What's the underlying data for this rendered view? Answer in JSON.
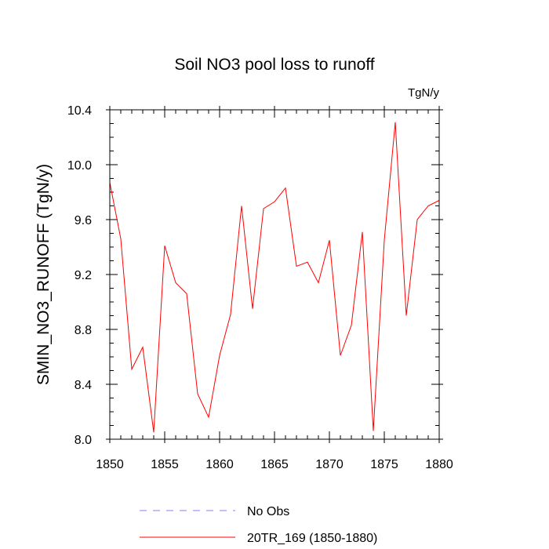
{
  "chart_data": {
    "type": "line",
    "title": "Soil NO3 pool loss to runoff",
    "units": "TgN/y",
    "xlabel": "",
    "ylabel": "SMIN_NO3_RUNOFF  (TgN/y)",
    "xlim": [
      1850,
      1880
    ],
    "ylim": [
      8.0,
      10.4
    ],
    "x_ticks": [
      "1850",
      "1855",
      "1860",
      "1865",
      "1870",
      "1875",
      "1880"
    ],
    "y_ticks": [
      "8.0",
      "8.4",
      "8.8",
      "9.2",
      "9.6",
      "10.0",
      "10.4"
    ],
    "legend_position": "bottom",
    "series": [
      {
        "name": "No Obs",
        "color": "#8080ff",
        "style": "dashed",
        "x": [],
        "values": []
      },
      {
        "name": "20TR_169 (1850-1880)",
        "color": "#ff0000",
        "style": "solid",
        "x": [
          1850,
          1851,
          1852,
          1853,
          1854,
          1855,
          1856,
          1857,
          1858,
          1859,
          1860,
          1861,
          1862,
          1863,
          1864,
          1865,
          1866,
          1867,
          1868,
          1869,
          1870,
          1871,
          1872,
          1873,
          1874,
          1875,
          1876,
          1877,
          1878,
          1879,
          1880
        ],
        "values": [
          9.87,
          9.46,
          8.51,
          8.67,
          8.05,
          9.41,
          9.14,
          9.06,
          8.33,
          8.16,
          8.61,
          8.91,
          9.7,
          8.95,
          9.68,
          9.73,
          9.83,
          9.26,
          9.29,
          9.14,
          9.45,
          8.61,
          8.83,
          9.51,
          8.06,
          9.45,
          10.31,
          8.9,
          9.6,
          9.7,
          9.74
        ]
      }
    ]
  }
}
